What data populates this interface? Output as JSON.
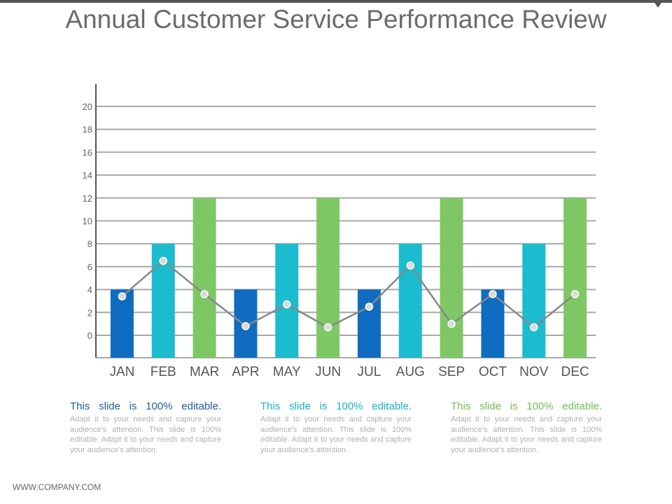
{
  "title": "Annual Customer Service Performance Review",
  "colors": {
    "dark_blue": "#0f6cc0",
    "cyan": "#1bbccf",
    "green": "#7dc864",
    "line": "#888888",
    "grid": "#a8a8a8"
  },
  "chart_data": {
    "type": "bar",
    "categories": [
      "JAN",
      "FEB",
      "MAR",
      "APR",
      "MAY",
      "JUN",
      "JUL",
      "AUG",
      "SEP",
      "OCT",
      "NOV",
      "DEC"
    ],
    "y_ticks": [
      0,
      2,
      4,
      6,
      8,
      10,
      12,
      14,
      16,
      18,
      20
    ],
    "ylim": [
      -2,
      22
    ],
    "bar_colors": [
      "dark_blue",
      "cyan",
      "green",
      "dark_blue",
      "cyan",
      "green",
      "dark_blue",
      "cyan",
      "green",
      "dark_blue",
      "cyan",
      "green"
    ],
    "series": [
      {
        "name": "Bars",
        "type": "bar",
        "values": [
          4,
          8,
          12,
          4,
          8,
          12,
          4,
          8,
          12,
          4,
          8,
          12
        ]
      },
      {
        "name": "Line",
        "type": "line",
        "values": [
          3.4,
          6.5,
          3.6,
          0.8,
          2.7,
          0.7,
          2.5,
          6.1,
          1.0,
          3.6,
          0.7,
          3.6
        ]
      }
    ],
    "title": "",
    "xlabel": "",
    "ylabel": ""
  },
  "text_blocks": [
    {
      "heading": "This slide is 100% editable.",
      "body": "Adapt it to your needs and capture your audience's attention. This slide is 100% editable. Adapt it to your needs and capture your audience's attention.",
      "color": "#1f5e96"
    },
    {
      "heading": "This slide is 100% editable.",
      "body": "Adapt it to your needs and capture your audience's attention. This slide is 100% editable. Adapt it to your needs and capture your audience's attention.",
      "color": "#1ab3c7"
    },
    {
      "heading": "This slide is 100% editable.",
      "body": "Adapt it to your needs and capture your audience's attention. This slide is 100% editable. Adapt it to your needs and capture your audience's attention.",
      "color": "#72c059"
    }
  ],
  "footer": "WWW.COMPANY.COM"
}
